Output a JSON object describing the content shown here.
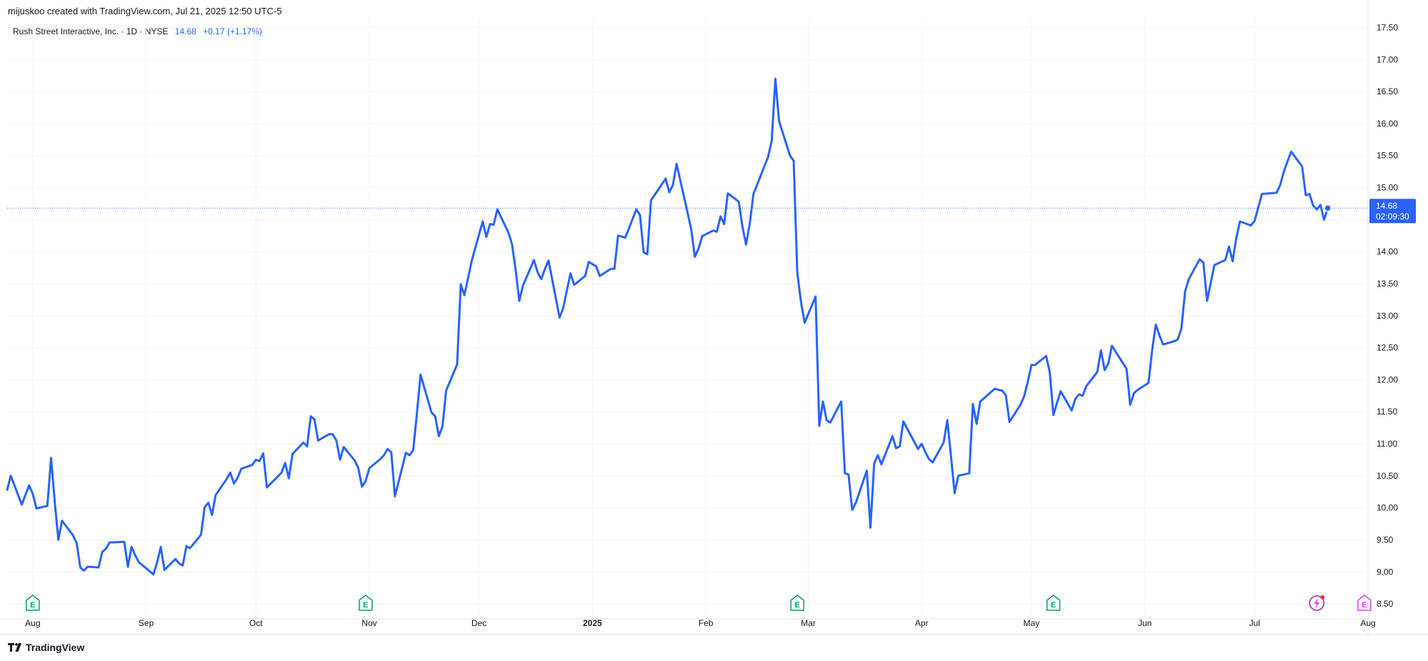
{
  "header": {
    "caption": "mijuskoo created with TradingView.com, Jul 21, 2025 12:50 UTC-5"
  },
  "symbol": {
    "name": "Rush Street Interactive, Inc. · 1D · NYSE",
    "price": "14.68",
    "change": "+0.17 (+1.17%)"
  },
  "footer": {
    "brand": "TradingView"
  },
  "colors": {
    "line": "#2962ff",
    "earnings": "#089981",
    "future_event": "#e040fb",
    "grid": "#f0f3fa"
  },
  "events": {
    "earnings_icon": "E",
    "earnings_dates": [
      "2024-08-01",
      "2024-10-31",
      "2025-02-26",
      "2025-05-07"
    ],
    "upcoming_earnings_date": "2025-07-31",
    "dividend_icon": "lightning-icon",
    "dividend_date": "2025-07-18"
  },
  "chart_data": {
    "type": "line",
    "title": "Rush Street Interactive, Inc. · 1D · NYSE",
    "xlabel": "",
    "ylabel": "",
    "x_range": [
      "2024-07-25",
      "2025-08-01"
    ],
    "ylim": [
      8.3,
      17.65
    ],
    "y_ticks": [
      "17.50",
      "17.00",
      "16.50",
      "16.00",
      "15.50",
      "15.00",
      "14.50",
      "14.00",
      "13.50",
      "13.00",
      "12.50",
      "12.00",
      "11.50",
      "11.00",
      "10.50",
      "10.00",
      "9.50",
      "9.00",
      "8.50"
    ],
    "x_tick_labels": [
      {
        "label": "Aug",
        "date": "2024-08-01"
      },
      {
        "label": "Sep",
        "date": "2024-09-01"
      },
      {
        "label": "Oct",
        "date": "2024-10-01"
      },
      {
        "label": "Nov",
        "date": "2024-11-01"
      },
      {
        "label": "Dec",
        "date": "2024-12-01"
      },
      {
        "label": "2025",
        "date": "2025-01-01",
        "bold": true
      },
      {
        "label": "Feb",
        "date": "2025-02-01"
      },
      {
        "label": "Mar",
        "date": "2025-03-01"
      },
      {
        "label": "Apr",
        "date": "2025-04-01"
      },
      {
        "label": "May",
        "date": "2025-05-01"
      },
      {
        "label": "Jun",
        "date": "2025-06-01"
      },
      {
        "label": "Jul",
        "date": "2025-07-01"
      },
      {
        "label": "Aug",
        "date": "2025-08-01"
      }
    ],
    "last_price": {
      "value": 14.68,
      "label": "14.68",
      "countdown": "02:09:30"
    },
    "grid": true,
    "legend": "none",
    "series": [
      {
        "values": [
          [
            "2024-07-25",
            10.28
          ],
          [
            "2024-07-26",
            10.5
          ],
          [
            "2024-07-29",
            10.05
          ],
          [
            "2024-07-30",
            10.2
          ],
          [
            "2024-07-31",
            10.35
          ],
          [
            "2024-08-01",
            10.22
          ],
          [
            "2024-08-02",
            9.99
          ],
          [
            "2024-08-05",
            10.03
          ],
          [
            "2024-08-06",
            10.78
          ],
          [
            "2024-08-07",
            10.1
          ],
          [
            "2024-08-08",
            9.5
          ],
          [
            "2024-08-09",
            9.8
          ],
          [
            "2024-08-12",
            9.57
          ],
          [
            "2024-08-13",
            9.45
          ],
          [
            "2024-08-14",
            9.07
          ],
          [
            "2024-08-15",
            9.02
          ],
          [
            "2024-08-16",
            9.08
          ],
          [
            "2024-08-19",
            9.07
          ],
          [
            "2024-08-20",
            9.31
          ],
          [
            "2024-08-21",
            9.36
          ],
          [
            "2024-08-22",
            9.46
          ],
          [
            "2024-08-23",
            9.46
          ],
          [
            "2024-08-26",
            9.47
          ],
          [
            "2024-08-27",
            9.08
          ],
          [
            "2024-08-28",
            9.39
          ],
          [
            "2024-08-29",
            9.26
          ],
          [
            "2024-08-30",
            9.15
          ],
          [
            "2024-09-03",
            8.96
          ],
          [
            "2024-09-04",
            9.15
          ],
          [
            "2024-09-05",
            9.39
          ],
          [
            "2024-09-06",
            9.03
          ],
          [
            "2024-09-09",
            9.2
          ],
          [
            "2024-09-10",
            9.13
          ],
          [
            "2024-09-11",
            9.1
          ],
          [
            "2024-09-12",
            9.4
          ],
          [
            "2024-09-13",
            9.37
          ],
          [
            "2024-09-16",
            9.58
          ],
          [
            "2024-09-17",
            10.01
          ],
          [
            "2024-09-18",
            10.08
          ],
          [
            "2024-09-19",
            9.89
          ],
          [
            "2024-09-20",
            10.2
          ],
          [
            "2024-09-23",
            10.45
          ],
          [
            "2024-09-24",
            10.55
          ],
          [
            "2024-09-25",
            10.38
          ],
          [
            "2024-09-26",
            10.47
          ],
          [
            "2024-09-27",
            10.61
          ],
          [
            "2024-09-30",
            10.67
          ],
          [
            "2024-10-01",
            10.75
          ],
          [
            "2024-10-02",
            10.73
          ],
          [
            "2024-10-03",
            10.85
          ],
          [
            "2024-10-04",
            10.32
          ],
          [
            "2024-10-07",
            10.49
          ],
          [
            "2024-10-08",
            10.55
          ],
          [
            "2024-10-09",
            10.7
          ],
          [
            "2024-10-10",
            10.46
          ],
          [
            "2024-10-11",
            10.84
          ],
          [
            "2024-10-14",
            11.02
          ],
          [
            "2024-10-15",
            10.96
          ],
          [
            "2024-10-16",
            11.43
          ],
          [
            "2024-10-17",
            11.38
          ],
          [
            "2024-10-18",
            11.05
          ],
          [
            "2024-10-21",
            11.15
          ],
          [
            "2024-10-22",
            11.15
          ],
          [
            "2024-10-23",
            11.05
          ],
          [
            "2024-10-24",
            10.75
          ],
          [
            "2024-10-25",
            10.95
          ],
          [
            "2024-10-28",
            10.74
          ],
          [
            "2024-10-29",
            10.62
          ],
          [
            "2024-10-30",
            10.33
          ],
          [
            "2024-10-31",
            10.42
          ],
          [
            "2024-11-01",
            10.62
          ],
          [
            "2024-11-04",
            10.76
          ],
          [
            "2024-11-05",
            10.82
          ],
          [
            "2024-11-06",
            10.92
          ],
          [
            "2024-11-07",
            10.87
          ],
          [
            "2024-11-08",
            10.18
          ],
          [
            "2024-11-11",
            10.86
          ],
          [
            "2024-11-12",
            10.82
          ],
          [
            "2024-11-13",
            10.9
          ],
          [
            "2024-11-14",
            11.46
          ],
          [
            "2024-11-15",
            12.08
          ],
          [
            "2024-11-18",
            11.49
          ],
          [
            "2024-11-19",
            11.43
          ],
          [
            "2024-11-20",
            11.12
          ],
          [
            "2024-11-21",
            11.27
          ],
          [
            "2024-11-22",
            11.83
          ],
          [
            "2024-11-25",
            12.24
          ],
          [
            "2024-11-26",
            13.49
          ],
          [
            "2024-11-27",
            13.32
          ],
          [
            "2024-11-29",
            13.86
          ],
          [
            "2024-12-02",
            14.47
          ],
          [
            "2024-12-03",
            14.23
          ],
          [
            "2024-12-04",
            14.43
          ],
          [
            "2024-12-05",
            14.42
          ],
          [
            "2024-12-06",
            14.66
          ],
          [
            "2024-12-09",
            14.3
          ],
          [
            "2024-12-10",
            14.12
          ],
          [
            "2024-12-11",
            13.72
          ],
          [
            "2024-12-12",
            13.23
          ],
          [
            "2024-12-13",
            13.47
          ],
          [
            "2024-12-16",
            13.87
          ],
          [
            "2024-12-17",
            13.68
          ],
          [
            "2024-12-18",
            13.57
          ],
          [
            "2024-12-19",
            13.73
          ],
          [
            "2024-12-20",
            13.86
          ],
          [
            "2024-12-23",
            12.97
          ],
          [
            "2024-12-24",
            13.12
          ],
          [
            "2024-12-26",
            13.66
          ],
          [
            "2024-12-27",
            13.48
          ],
          [
            "2024-12-30",
            13.62
          ],
          [
            "2024-12-31",
            13.84
          ],
          [
            "2025-01-02",
            13.77
          ],
          [
            "2025-01-03",
            13.62
          ],
          [
            "2025-01-06",
            13.73
          ],
          [
            "2025-01-07",
            13.73
          ],
          [
            "2025-01-08",
            14.25
          ],
          [
            "2025-01-10",
            14.22
          ],
          [
            "2025-01-13",
            14.66
          ],
          [
            "2025-01-14",
            14.57
          ],
          [
            "2025-01-15",
            13.99
          ],
          [
            "2025-01-16",
            13.96
          ],
          [
            "2025-01-17",
            14.8
          ],
          [
            "2025-01-21",
            15.14
          ],
          [
            "2025-01-22",
            14.93
          ],
          [
            "2025-01-23",
            15.04
          ],
          [
            "2025-01-24",
            15.37
          ],
          [
            "2025-01-27",
            14.61
          ],
          [
            "2025-01-28",
            14.35
          ],
          [
            "2025-01-29",
            13.92
          ],
          [
            "2025-01-30",
            14.05
          ],
          [
            "2025-01-31",
            14.24
          ],
          [
            "2025-02-03",
            14.33
          ],
          [
            "2025-02-04",
            14.31
          ],
          [
            "2025-02-05",
            14.55
          ],
          [
            "2025-02-06",
            14.43
          ],
          [
            "2025-02-07",
            14.91
          ],
          [
            "2025-02-10",
            14.78
          ],
          [
            "2025-02-11",
            14.39
          ],
          [
            "2025-02-12",
            14.11
          ],
          [
            "2025-02-13",
            14.44
          ],
          [
            "2025-02-14",
            14.9
          ],
          [
            "2025-02-18",
            15.48
          ],
          [
            "2025-02-19",
            15.73
          ],
          [
            "2025-02-20",
            16.7
          ],
          [
            "2025-02-21",
            16.04
          ],
          [
            "2025-02-24",
            15.5
          ],
          [
            "2025-02-25",
            15.42
          ],
          [
            "2025-02-26",
            13.67
          ],
          [
            "2025-02-27",
            13.21
          ],
          [
            "2025-02-28",
            12.89
          ],
          [
            "2025-03-03",
            13.3
          ],
          [
            "2025-03-04",
            11.28
          ],
          [
            "2025-03-05",
            11.66
          ],
          [
            "2025-03-06",
            11.37
          ],
          [
            "2025-03-07",
            11.33
          ],
          [
            "2025-03-10",
            11.66
          ],
          [
            "2025-03-11",
            10.54
          ],
          [
            "2025-03-12",
            10.52
          ],
          [
            "2025-03-13",
            9.97
          ],
          [
            "2025-03-14",
            10.08
          ],
          [
            "2025-03-17",
            10.58
          ],
          [
            "2025-03-18",
            9.69
          ],
          [
            "2025-03-19",
            10.69
          ],
          [
            "2025-03-20",
            10.82
          ],
          [
            "2025-03-21",
            10.68
          ],
          [
            "2025-03-24",
            11.12
          ],
          [
            "2025-03-25",
            10.93
          ],
          [
            "2025-03-26",
            10.96
          ],
          [
            "2025-03-27",
            11.35
          ],
          [
            "2025-03-28",
            11.24
          ],
          [
            "2025-03-31",
            10.92
          ],
          [
            "2025-04-01",
            11.0
          ],
          [
            "2025-04-02",
            10.87
          ],
          [
            "2025-04-03",
            10.76
          ],
          [
            "2025-04-04",
            10.71
          ],
          [
            "2025-04-07",
            11.02
          ],
          [
            "2025-04-08",
            11.37
          ],
          [
            "2025-04-09",
            10.81
          ],
          [
            "2025-04-10",
            10.23
          ],
          [
            "2025-04-11",
            10.5
          ],
          [
            "2025-04-14",
            10.54
          ],
          [
            "2025-04-15",
            11.62
          ],
          [
            "2025-04-16",
            11.31
          ],
          [
            "2025-04-17",
            11.66
          ],
          [
            "2025-04-21",
            11.86
          ],
          [
            "2025-04-22",
            11.84
          ],
          [
            "2025-04-23",
            11.83
          ],
          [
            "2025-04-24",
            11.76
          ],
          [
            "2025-04-25",
            11.34
          ],
          [
            "2025-04-28",
            11.61
          ],
          [
            "2025-04-29",
            11.74
          ],
          [
            "2025-04-30",
            11.97
          ],
          [
            "2025-05-01",
            12.23
          ],
          [
            "2025-05-02",
            12.23
          ],
          [
            "2025-05-05",
            12.37
          ],
          [
            "2025-05-06",
            12.12
          ],
          [
            "2025-05-07",
            11.45
          ],
          [
            "2025-05-08",
            11.64
          ],
          [
            "2025-05-09",
            11.82
          ],
          [
            "2025-05-12",
            11.52
          ],
          [
            "2025-05-13",
            11.7
          ],
          [
            "2025-05-14",
            11.77
          ],
          [
            "2025-05-15",
            11.75
          ],
          [
            "2025-05-16",
            11.9
          ],
          [
            "2025-05-19",
            12.12
          ],
          [
            "2025-05-20",
            12.46
          ],
          [
            "2025-05-21",
            12.15
          ],
          [
            "2025-05-22",
            12.25
          ],
          [
            "2025-05-23",
            12.53
          ],
          [
            "2025-05-27",
            12.17
          ],
          [
            "2025-05-28",
            11.61
          ],
          [
            "2025-05-29",
            11.79
          ],
          [
            "2025-05-30",
            11.84
          ],
          [
            "2025-06-02",
            11.95
          ],
          [
            "2025-06-03",
            12.47
          ],
          [
            "2025-06-04",
            12.86
          ],
          [
            "2025-06-05",
            12.69
          ],
          [
            "2025-06-06",
            12.55
          ],
          [
            "2025-06-09",
            12.6
          ],
          [
            "2025-06-10",
            12.63
          ],
          [
            "2025-06-11",
            12.8
          ],
          [
            "2025-06-12",
            13.38
          ],
          [
            "2025-06-13",
            13.57
          ],
          [
            "2025-06-16",
            13.88
          ],
          [
            "2025-06-17",
            13.83
          ],
          [
            "2025-06-18",
            13.23
          ],
          [
            "2025-06-20",
            13.79
          ],
          [
            "2025-06-23",
            13.87
          ],
          [
            "2025-06-24",
            14.08
          ],
          [
            "2025-06-25",
            13.85
          ],
          [
            "2025-06-26",
            14.21
          ],
          [
            "2025-06-27",
            14.47
          ],
          [
            "2025-06-30",
            14.41
          ],
          [
            "2025-07-01",
            14.48
          ],
          [
            "2025-07-02",
            14.69
          ],
          [
            "2025-07-03",
            14.9
          ],
          [
            "2025-07-07",
            14.92
          ],
          [
            "2025-07-08",
            15.04
          ],
          [
            "2025-07-09",
            15.25
          ],
          [
            "2025-07-10",
            15.41
          ],
          [
            "2025-07-11",
            15.56
          ],
          [
            "2025-07-14",
            15.33
          ],
          [
            "2025-07-15",
            14.88
          ],
          [
            "2025-07-16",
            14.9
          ],
          [
            "2025-07-17",
            14.72
          ],
          [
            "2025-07-18",
            14.66
          ],
          [
            "2025-07-19",
            14.73
          ],
          [
            "2025-07-20",
            14.5
          ],
          [
            "2025-07-21",
            14.68
          ]
        ]
      }
    ]
  }
}
